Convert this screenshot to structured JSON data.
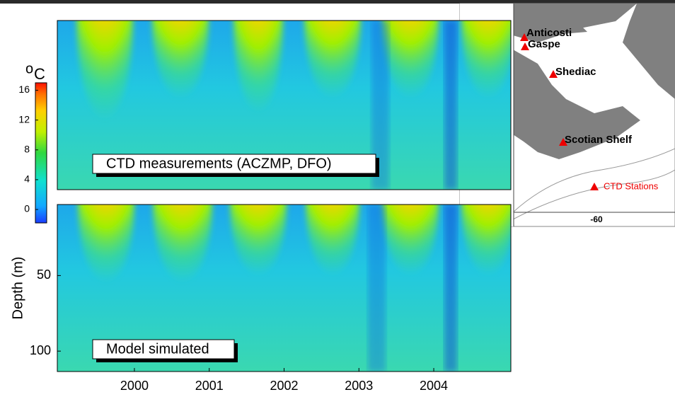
{
  "colorbar": {
    "unit_superscript": "o",
    "unit": "C",
    "ticks": [
      0,
      4,
      8,
      12,
      16
    ],
    "lim": [
      -1.8,
      17
    ]
  },
  "panels": [
    {
      "label": "CTD measurements (ACZMP, DFO)"
    },
    {
      "label": "Model simulated"
    }
  ],
  "x_axis": {
    "ticks": [
      2000,
      2001,
      2002,
      2003,
      2004
    ],
    "lim": [
      1998.97,
      2005.03
    ]
  },
  "y_axis": {
    "label": "Depth (m)",
    "ticks": [
      50,
      100
    ],
    "lim": [
      3,
      113.5
    ]
  },
  "map": {
    "stations": [
      {
        "name": "Anticosti"
      },
      {
        "name": "Gaspe"
      },
      {
        "name": "Shediac"
      },
      {
        "name": "Scotian Shelf"
      }
    ],
    "legend": "CTD Stations",
    "lon_tick": -60
  }
}
